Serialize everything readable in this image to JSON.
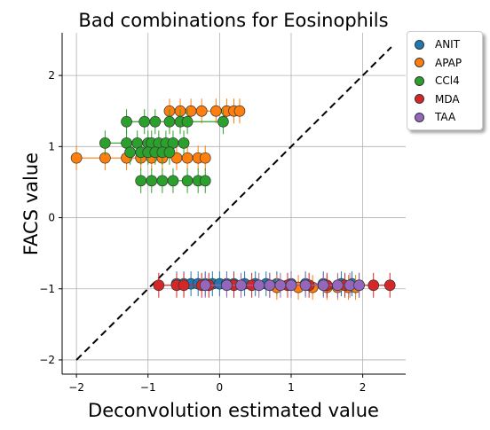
{
  "chart_data": {
    "type": "scatter",
    "title": "Bad combinations for Eosinophils",
    "xlabel": "Deconvolution estimated value",
    "ylabel": "FACS value",
    "xlim": [
      -2.2,
      2.6
    ],
    "ylim": [
      -2.2,
      2.6
    ],
    "xticks": [
      "-2",
      "-1",
      "0",
      "1",
      "2"
    ],
    "yticks": [
      "-2",
      "-1",
      "0",
      "1",
      "2"
    ],
    "grid": true,
    "legend_position": "outside-top-right",
    "diagonal": {
      "from": [
        -2,
        -2
      ],
      "to": [
        2.4,
        2.4
      ],
      "style": "dashed"
    },
    "series": [
      {
        "name": "ANIT",
        "color": "#1f77b4",
        "y": -0.93,
        "x": [
          -0.6,
          -0.5,
          -0.4,
          -0.3,
          -0.2,
          -0.1,
          0.0,
          0.1,
          0.2,
          0.35,
          0.5,
          0.65,
          0.8,
          1.0,
          1.2,
          1.45,
          1.7,
          1.85
        ]
      },
      {
        "name": "APAP",
        "color": "#ff7f0e",
        "groups": [
          {
            "y": 1.5,
            "x": [
              -0.7,
              -0.55,
              -0.4,
              -0.25,
              -0.05,
              0.1,
              0.2,
              0.28
            ]
          },
          {
            "y": 0.84,
            "x": [
              -2.0,
              -1.6,
              -1.3,
              -1.1,
              -0.95,
              -0.8,
              -0.6,
              -0.45,
              -0.3,
              -0.2
            ]
          },
          {
            "y": -0.98,
            "x": [
              0.8,
              1.1,
              1.3,
              1.5,
              1.65,
              1.8,
              1.9
            ]
          }
        ]
      },
      {
        "name": "CCl4",
        "color": "#2ca02c",
        "groups": [
          {
            "y": 1.35,
            "x": [
              -1.3,
              -1.05,
              -0.9,
              -0.7,
              -0.55,
              -0.45,
              0.05
            ]
          },
          {
            "y": 1.05,
            "x": [
              -1.6,
              -1.3,
              -1.15,
              -1.0,
              -0.95,
              -0.85,
              -0.75,
              -0.65,
              -0.5
            ]
          },
          {
            "y": 0.92,
            "x": [
              -1.25,
              -1.1,
              -1.0,
              -0.9,
              -0.8,
              -0.7
            ]
          },
          {
            "y": 0.52,
            "x": [
              -1.1,
              -0.95,
              -0.8,
              -0.65,
              -0.45,
              -0.3,
              -0.2
            ]
          }
        ]
      },
      {
        "name": "MDA",
        "color": "#d62728",
        "y": -0.95,
        "x": [
          -0.85,
          -0.6,
          -0.5,
          -0.25,
          -0.15,
          0.2,
          0.45,
          0.7,
          0.95,
          1.25,
          1.5,
          1.75,
          1.95,
          2.15,
          2.38
        ]
      },
      {
        "name": "TAA",
        "color": "#9467bd",
        "y": -0.95,
        "x": [
          -0.2,
          0.1,
          0.3,
          0.55,
          0.7,
          0.85,
          1.0,
          1.2,
          1.45,
          1.65,
          1.82,
          1.95
        ]
      }
    ]
  }
}
